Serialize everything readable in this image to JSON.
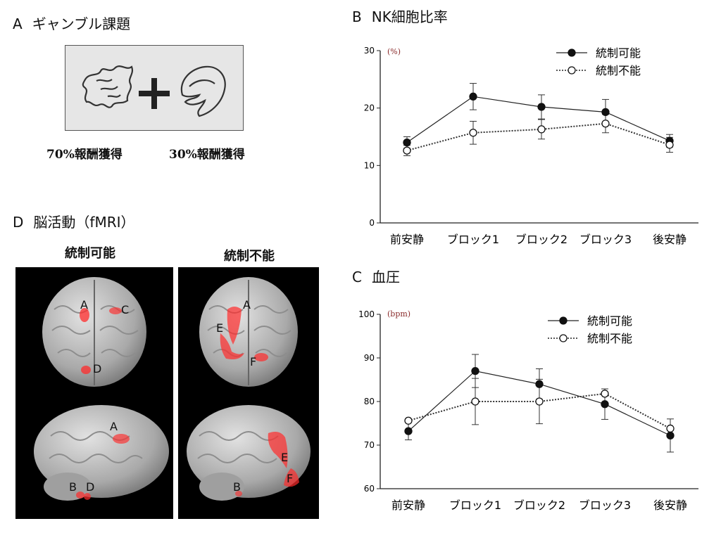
{
  "panel_a": {
    "letter": "A",
    "title": "ギャンブル課題",
    "reward_left": "70%報酬獲得",
    "reward_right": "30%報酬獲得"
  },
  "panel_b": {
    "letter": "B",
    "title": "NK細胞比率"
  },
  "panel_c": {
    "letter": "C",
    "title": "血圧"
  },
  "panel_d": {
    "letter": "D",
    "title": "脳活動（fMRI）",
    "label_left": "統制可能",
    "label_right": "統制不能",
    "region_labels": {
      "tl": [
        "A",
        "C",
        "D"
      ],
      "tr": [
        "A",
        "E",
        "F"
      ],
      "bl": [
        "A",
        "B",
        "D"
      ],
      "br": [
        "E",
        "F",
        "B"
      ]
    }
  },
  "colors": {
    "activation": "#ff2b2b",
    "brain": "#bdbdbd",
    "panel_a_bg": "#e6e6e6"
  },
  "chart_data": [
    {
      "type": "line",
      "categories": [
        "前安静",
        "ブロック1",
        "ブロック2",
        "ブロック3",
        "後安静"
      ],
      "ylabel": "(%)",
      "ylim": [
        0,
        30
      ],
      "yticks": [
        0,
        10,
        20,
        30
      ],
      "legend_position": "top-right",
      "series": [
        {
          "name": "統制可能",
          "values": [
            14,
            22,
            20.2,
            19.3,
            14.3
          ],
          "errors": [
            1.0,
            2.3,
            2.1,
            2.2,
            1.1
          ],
          "marker": "filled",
          "line": "solid"
        },
        {
          "name": "統制不能",
          "values": [
            12.6,
            15.7,
            16.3,
            17.3,
            13.6
          ],
          "errors": [
            0.9,
            2.0,
            1.7,
            1.6,
            1.3
          ],
          "marker": "open",
          "line": "dotted"
        }
      ]
    },
    {
      "type": "line",
      "categories": [
        "前安静",
        "ブロック1",
        "ブロック2",
        "ブロック3",
        "後安静"
      ],
      "ylabel": "(bpm)",
      "ylim": [
        60,
        100
      ],
      "yticks": [
        60,
        70,
        80,
        90,
        100
      ],
      "legend_position": "top-right",
      "series": [
        {
          "name": "統制可能",
          "values": [
            73.2,
            87,
            84,
            79.4,
            72.2
          ],
          "errors": [
            2.0,
            3.8,
            3.5,
            3.5,
            3.8
          ],
          "marker": "filled",
          "line": "solid"
        },
        {
          "name": "統制不能",
          "values": [
            75.6,
            80,
            80,
            81.8,
            73.8
          ],
          "errors": [
            0,
            5.3,
            5.1,
            0,
            0
          ],
          "marker": "open",
          "line": "dotted"
        }
      ]
    }
  ]
}
